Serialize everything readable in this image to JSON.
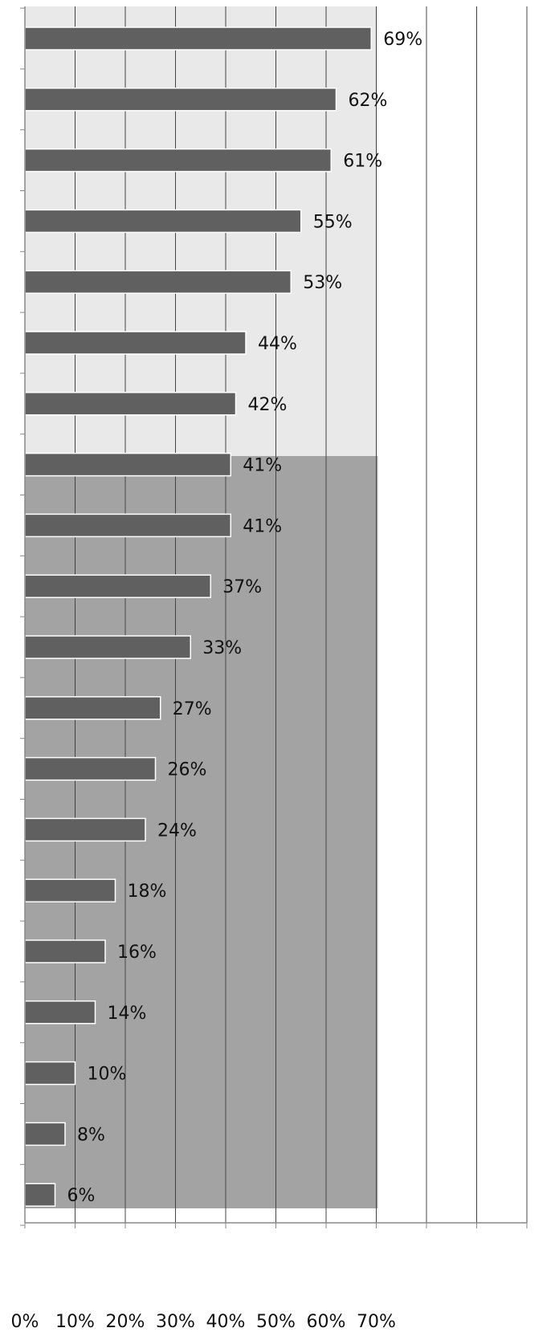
{
  "chart_data": {
    "type": "bar",
    "orientation": "horizontal",
    "categories": [
      "",
      "",
      "",
      "",
      "",
      "",
      "",
      "",
      "",
      "",
      "",
      "",
      "",
      "",
      "",
      "",
      "",
      "",
      "",
      ""
    ],
    "values": [
      69,
      62,
      61,
      55,
      53,
      44,
      42,
      41,
      41,
      37,
      33,
      27,
      26,
      24,
      18,
      16,
      14,
      10,
      8,
      6
    ],
    "data_labels": [
      "69%",
      "62%",
      "61%",
      "55%",
      "53%",
      "44%",
      "42%",
      "41%",
      "41%",
      "37%",
      "33%",
      "27%",
      "26%",
      "24%",
      "18%",
      "16%",
      "14%",
      "10%",
      "8%",
      "6%"
    ],
    "x_ticks": [
      "0%",
      "10%",
      "20%",
      "30%",
      "40%",
      "50%",
      "60%",
      "70%"
    ],
    "xlim": [
      0,
      100
    ],
    "title": "",
    "xlabel": "",
    "ylabel": "",
    "grid": "vertical",
    "legend": "none",
    "colors": {
      "bar": "#606060",
      "bar_edge": "#ffffff",
      "grid": "#444444",
      "axis": "#888888",
      "plot_light_bg": "#e9e9e9",
      "plot_dark_bg": "#a3a3a3"
    }
  }
}
